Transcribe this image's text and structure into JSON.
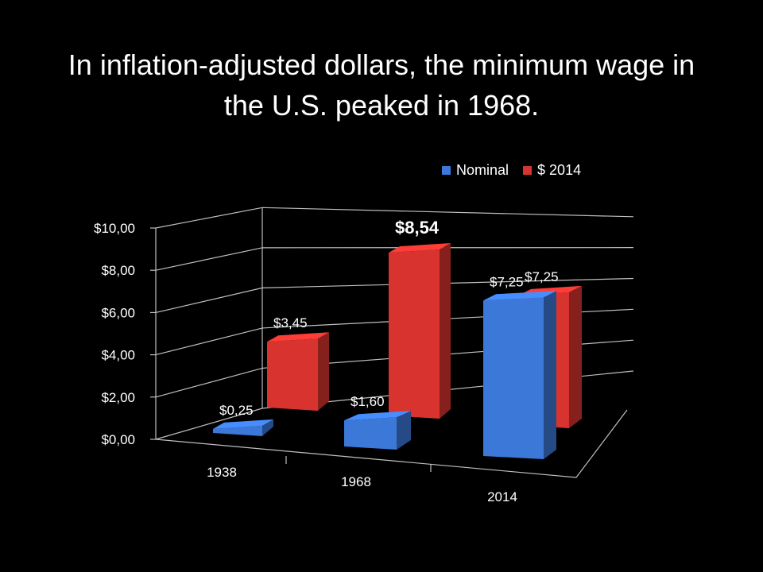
{
  "slide": {
    "title": "In inflation-adjusted dollars, the minimum wage in the U.S. peaked in 1968."
  },
  "chart_data": {
    "type": "bar",
    "style": "3d-clustered",
    "title": "In inflation-adjusted dollars, the minimum wage in the U.S. peaked in 1968.",
    "categories": [
      "1938",
      "1968",
      "2014"
    ],
    "series": [
      {
        "name": "Nominal",
        "values": [
          0.25,
          1.6,
          7.25
        ],
        "labels": [
          "$0,25",
          "$1,60",
          "$7,25"
        ],
        "color": "#3b78d8"
      },
      {
        "name": "$ 2014",
        "values": [
          3.45,
          8.54,
          7.25
        ],
        "labels": [
          "$3,45",
          "$8,54",
          "$7,25"
        ],
        "color": "#d8332e"
      }
    ],
    "highlighted_label": "$8,54",
    "ylim": [
      0,
      10
    ],
    "y_ticks": [
      "$0,00",
      "$2,00",
      "$4,00",
      "$6,00",
      "$8,00",
      "$10,00"
    ],
    "grid": true,
    "legend_position": "top-right",
    "background": "#000000"
  }
}
